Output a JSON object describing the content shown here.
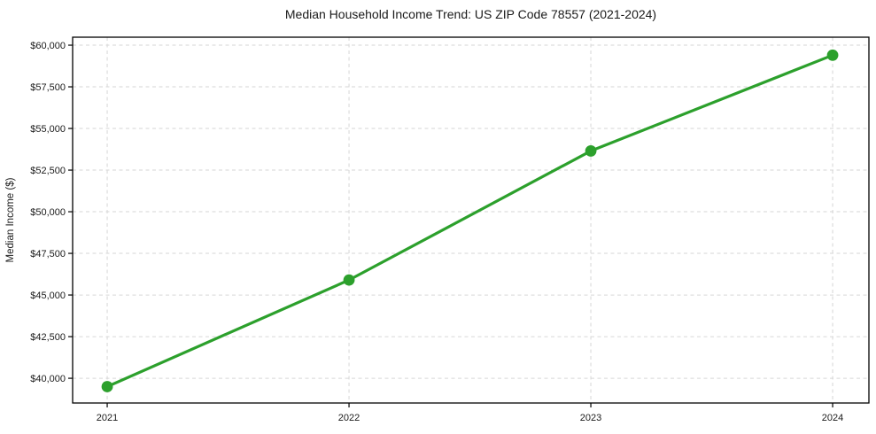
{
  "figure": {
    "background": "#ffffff"
  },
  "chart_data": {
    "type": "line",
    "title": "Median Household Income Trend: US ZIP Code 78557 (2021-2024)",
    "xlabel": "",
    "ylabel": "Median Income ($)",
    "x": [
      2021,
      2022,
      2023,
      2024
    ],
    "values": [
      39500,
      45900,
      53650,
      59400
    ],
    "xticks": {
      "values": [
        2021,
        2022,
        2023,
        2024
      ],
      "labels": [
        "2021",
        "2022",
        "2023",
        "2024"
      ]
    },
    "yticks": {
      "values": [
        40000,
        42500,
        45000,
        47500,
        50000,
        52500,
        55000,
        57500,
        60000
      ],
      "labels": [
        "$40,000",
        "$42,500",
        "$45,000",
        "$47,500",
        "$50,000",
        "$52,500",
        "$55,000",
        "$57,500",
        "$60,000"
      ]
    },
    "xlim": [
      2020.857,
      2024.15
    ],
    "ylim": [
      38515,
      60480
    ],
    "grid": {
      "show": true,
      "style": "dashed",
      "color": "#d6d6d6"
    },
    "legend": "none",
    "line_color": "#2ca02c",
    "marker_color": "#2ca02c",
    "axis_color": "#000000",
    "text_color": "#1a1a1a",
    "line_width": 3.2,
    "marker_radius": 6.4
  }
}
